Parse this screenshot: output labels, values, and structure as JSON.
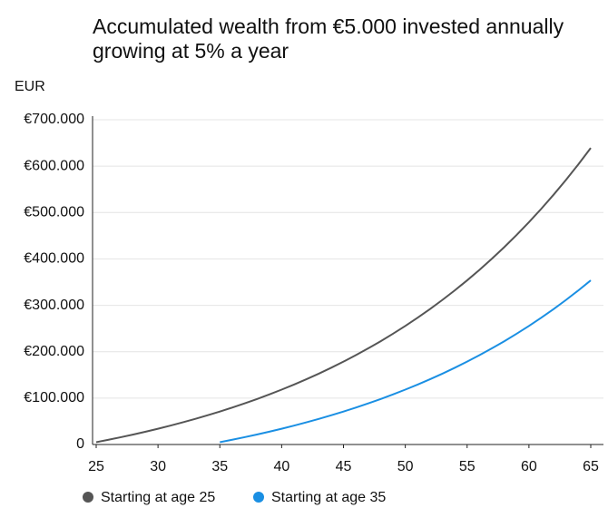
{
  "chart_data": {
    "type": "line",
    "title": "Accumulated wealth from €5.000 invested annually growing at 5% a year",
    "y_label": "EUR",
    "x": [
      25,
      26,
      27,
      28,
      29,
      30,
      31,
      32,
      33,
      34,
      35,
      36,
      37,
      38,
      39,
      40,
      41,
      42,
      43,
      44,
      45,
      46,
      47,
      48,
      49,
      50,
      51,
      52,
      53,
      54,
      55,
      56,
      57,
      58,
      59,
      60,
      61,
      62,
      63,
      64,
      65
    ],
    "series": [
      {
        "name": "Starting at age 25",
        "color": "#555555",
        "values": [
          5000,
          10250,
          15763,
          21551,
          27628,
          34010,
          40710,
          47746,
          55133,
          62889,
          71034,
          79586,
          88565,
          97993,
          107893,
          118288,
          129202,
          140662,
          152695,
          165330,
          178596,
          192526,
          207152,
          222510,
          238636,
          255567,
          273346,
          292013,
          311614,
          332194,
          353804,
          376494,
          400319,
          425335,
          451602,
          479182,
          508141,
          538548,
          570475,
          603999,
          639199
        ]
      },
      {
        "name": "Starting at age 35",
        "color": "#1a8fe3",
        "values": [
          null,
          null,
          null,
          null,
          null,
          null,
          null,
          null,
          null,
          null,
          5000,
          10250,
          15763,
          21551,
          27628,
          34010,
          40710,
          47746,
          55133,
          62889,
          71034,
          79586,
          88565,
          97993,
          107893,
          118288,
          129202,
          140662,
          152695,
          165330,
          178596,
          192526,
          207152,
          222510,
          238636,
          255567,
          273346,
          292013,
          311614,
          332194,
          353804
        ]
      }
    ],
    "xlim": [
      25,
      65
    ],
    "ylim": [
      0,
      700000
    ],
    "xticks": [
      25,
      30,
      35,
      40,
      45,
      50,
      55,
      60,
      65
    ],
    "yticks": [
      0,
      {
        "value": 100000,
        "label": "€100.000"
      },
      {
        "value": 200000,
        "label": "€200.000"
      },
      {
        "value": 300000,
        "label": "€300.000"
      },
      {
        "value": 400000,
        "label": "€400.000"
      },
      {
        "value": 500000,
        "label": "€500.000"
      },
      {
        "value": 600000,
        "label": "€600.000"
      },
      {
        "value": 700000,
        "label": "€700.000"
      }
    ],
    "grid": true
  }
}
